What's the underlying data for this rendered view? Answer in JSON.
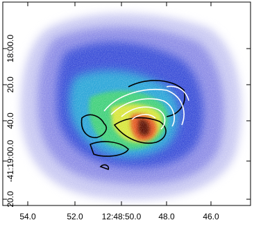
{
  "x_tick_labels": [
    "54.0",
    "52.0",
    "12:48:50.0",
    "48.0",
    "46.0"
  ],
  "y_tick_labels": [
    "18:00.0",
    "20.0",
    "40.0",
    "-41:19:00.0",
    "20.0"
  ]
}
